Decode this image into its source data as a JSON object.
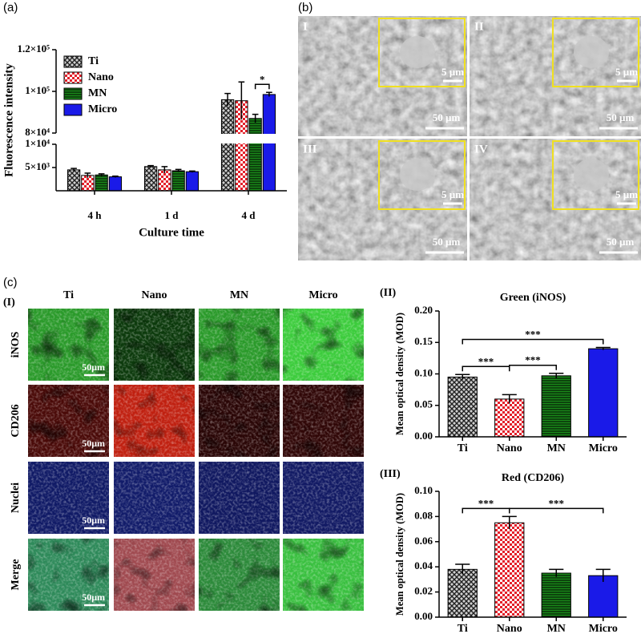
{
  "figure": {
    "panel_labels": [
      "(a)",
      "(b)",
      "(c)"
    ],
    "sem": {
      "images": [
        "I",
        "II",
        "III",
        "IV"
      ],
      "inset_scale": "5 µm",
      "scale": "50 µm"
    },
    "fluorescence": {
      "label": "(I)",
      "columns": [
        "Ti",
        "Nano",
        "MN",
        "Micro"
      ],
      "rows": [
        "iNOS",
        "CD206",
        "Nuclei",
        "Merge"
      ],
      "scale": "50μm"
    }
  },
  "chart_data": [
    {
      "type": "bar",
      "label": "",
      "xlabel": "Culture time",
      "ylabel": "Fluorescence intensity",
      "categories": [
        "4 h",
        "1 d",
        "4 d"
      ],
      "series": [
        {
          "name": "Ti",
          "color": "#666666",
          "pattern": "crosshatch",
          "values": [
            4500,
            5200,
            96000
          ],
          "errors": [
            300,
            200,
            3000
          ]
        },
        {
          "name": "Nano",
          "color": "#e3202a",
          "pattern": "checker",
          "values": [
            3300,
            4500,
            95500
          ],
          "errors": [
            500,
            700,
            9000
          ]
        },
        {
          "name": "MN",
          "color": "#1a8a1a",
          "pattern": "hstripes",
          "values": [
            3400,
            4300,
            87000
          ],
          "errors": [
            250,
            300,
            2000
          ]
        },
        {
          "name": "Micro",
          "color": "#1a1ae8",
          "pattern": "solid",
          "values": [
            3000,
            4100,
            98500
          ],
          "errors": [
            150,
            150,
            1000
          ]
        }
      ],
      "ylim": [
        0,
        120000
      ],
      "axis_break": [
        10000,
        80000
      ],
      "yticks": [
        {
          "value": 5000,
          "label": "5×10³"
        },
        {
          "value": 10000,
          "label": "1×10⁴"
        },
        {
          "value": 80000,
          "label": "8×10⁴"
        },
        {
          "value": 100000,
          "label": "1×10⁵"
        },
        {
          "value": 120000,
          "label": "1.2×10⁵"
        }
      ],
      "legend": "upper left",
      "annotations": [
        {
          "text": "*",
          "category": "4 d",
          "from": "MN",
          "to": "Micro"
        }
      ]
    },
    {
      "type": "bar",
      "label": "(II)",
      "title": "Green (iNOS)",
      "ylabel": "Mean optical density (MOD)",
      "categories": [
        "Ti",
        "Nano",
        "MN",
        "Micro"
      ],
      "values": [
        0.095,
        0.06,
        0.097,
        0.14
      ],
      "errors": [
        0.004,
        0.007,
        0.004,
        0.002
      ],
      "colors": [
        "#666666",
        "#e3202a",
        "#1a8a1a",
        "#1a1ae8"
      ],
      "patterns": [
        "crosshatch",
        "checker",
        "hstripes",
        "solid"
      ],
      "ylim": [
        0,
        0.2
      ],
      "yticks": [
        {
          "value": 0,
          "label": "0.00"
        },
        {
          "value": 0.05,
          "label": "0.05"
        },
        {
          "value": 0.1,
          "label": "0.10"
        },
        {
          "value": 0.15,
          "label": "0.15"
        },
        {
          "value": 0.2,
          "label": "0.20"
        }
      ],
      "annotations": [
        {
          "text": "***",
          "from": "Ti",
          "to": "Nano"
        },
        {
          "text": "***",
          "from": "Nano",
          "to": "MN"
        },
        {
          "text": "***",
          "from": "Ti",
          "to": "Micro"
        }
      ]
    },
    {
      "type": "bar",
      "label": "(III)",
      "title": "Red (CD206)",
      "ylabel": "Mean optical density (MOD)",
      "categories": [
        "Ti",
        "Nano",
        "MN",
        "Micro"
      ],
      "values": [
        0.038,
        0.075,
        0.035,
        0.033
      ],
      "errors": [
        0.004,
        0.005,
        0.003,
        0.005
      ],
      "colors": [
        "#666666",
        "#e3202a",
        "#1a8a1a",
        "#1a1ae8"
      ],
      "patterns": [
        "crosshatch",
        "checker",
        "hstripes",
        "solid"
      ],
      "ylim": [
        0,
        0.1
      ],
      "yticks": [
        {
          "value": 0,
          "label": "0.00"
        },
        {
          "value": 0.02,
          "label": "0.02"
        },
        {
          "value": 0.04,
          "label": "0.04"
        },
        {
          "value": 0.06,
          "label": "0.06"
        },
        {
          "value": 0.08,
          "label": "0.08"
        },
        {
          "value": 0.1,
          "label": "0.10"
        }
      ],
      "annotations": [
        {
          "text": "***",
          "from": "Ti",
          "to": "Nano"
        },
        {
          "text": "***",
          "from": "Nano",
          "to": "Micro"
        }
      ]
    }
  ]
}
